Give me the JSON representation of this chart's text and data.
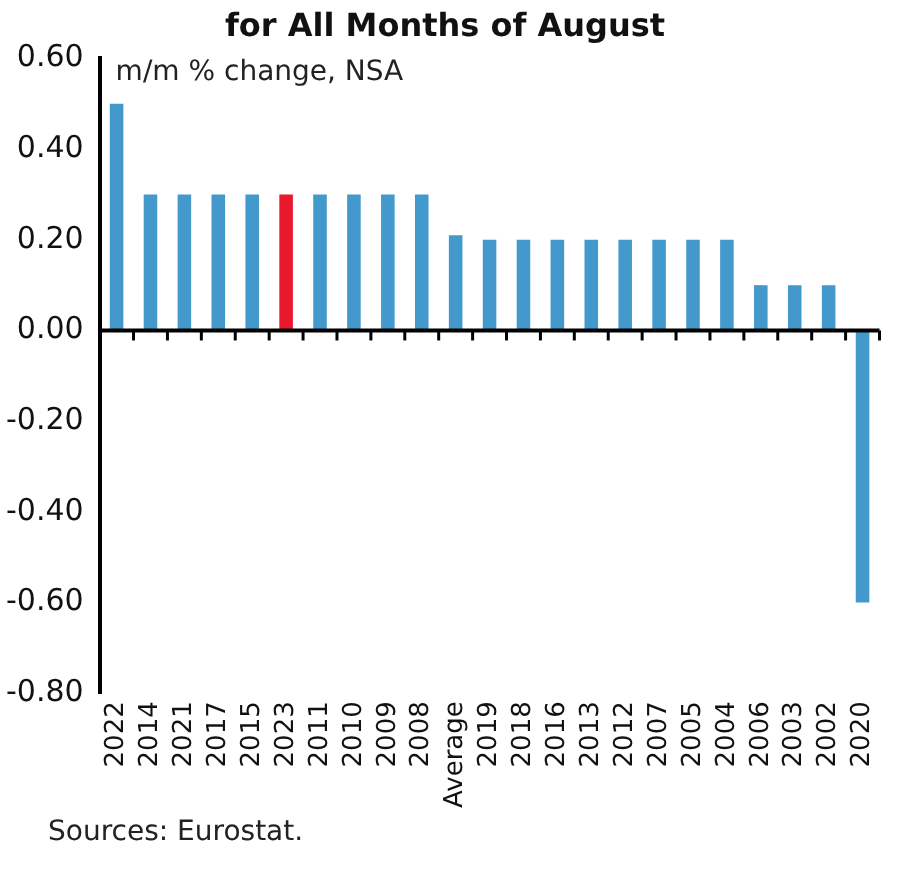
{
  "chart_data": {
    "type": "bar",
    "title": "for All Months of August",
    "ylabel": "m/m % change, NSA",
    "categories": [
      "2022",
      "2014",
      "2021",
      "2017",
      "2015",
      "2023",
      "2011",
      "2010",
      "2009",
      "2008",
      "Average",
      "2019",
      "2018",
      "2016",
      "2013",
      "2012",
      "2007",
      "2005",
      "2004",
      "2006",
      "2003",
      "2002",
      "2020"
    ],
    "values": [
      0.5,
      0.3,
      0.3,
      0.3,
      0.3,
      0.3,
      0.3,
      0.3,
      0.3,
      0.3,
      0.21,
      0.2,
      0.2,
      0.2,
      0.2,
      0.2,
      0.2,
      0.2,
      0.2,
      0.1,
      0.1,
      0.1,
      -0.6
    ],
    "colors": [
      "#4399cc",
      "#4399cc",
      "#4399cc",
      "#4399cc",
      "#4399cc",
      "#e8192c",
      "#4399cc",
      "#4399cc",
      "#4399cc",
      "#4399cc",
      "#4399cc",
      "#4399cc",
      "#4399cc",
      "#4399cc",
      "#4399cc",
      "#4399cc",
      "#4399cc",
      "#4399cc",
      "#4399cc",
      "#4399cc",
      "#4399cc",
      "#4399cc",
      "#4399cc"
    ],
    "ylim": [
      -0.8,
      0.6
    ],
    "yticks": [
      {
        "value": -0.8,
        "label": "-0.80"
      },
      {
        "value": -0.6,
        "label": "-0.60"
      },
      {
        "value": -0.4,
        "label": "-0.40"
      },
      {
        "value": -0.2,
        "label": "-0.20"
      },
      {
        "value": 0,
        "label": "0.00"
      },
      {
        "value": 0.2,
        "label": "0.20"
      },
      {
        "value": 0.4,
        "label": "0.40"
      },
      {
        "value": 0.6,
        "label": "0.60"
      }
    ],
    "legend": false,
    "annotations": [
      "Sources: Eurostat."
    ]
  }
}
